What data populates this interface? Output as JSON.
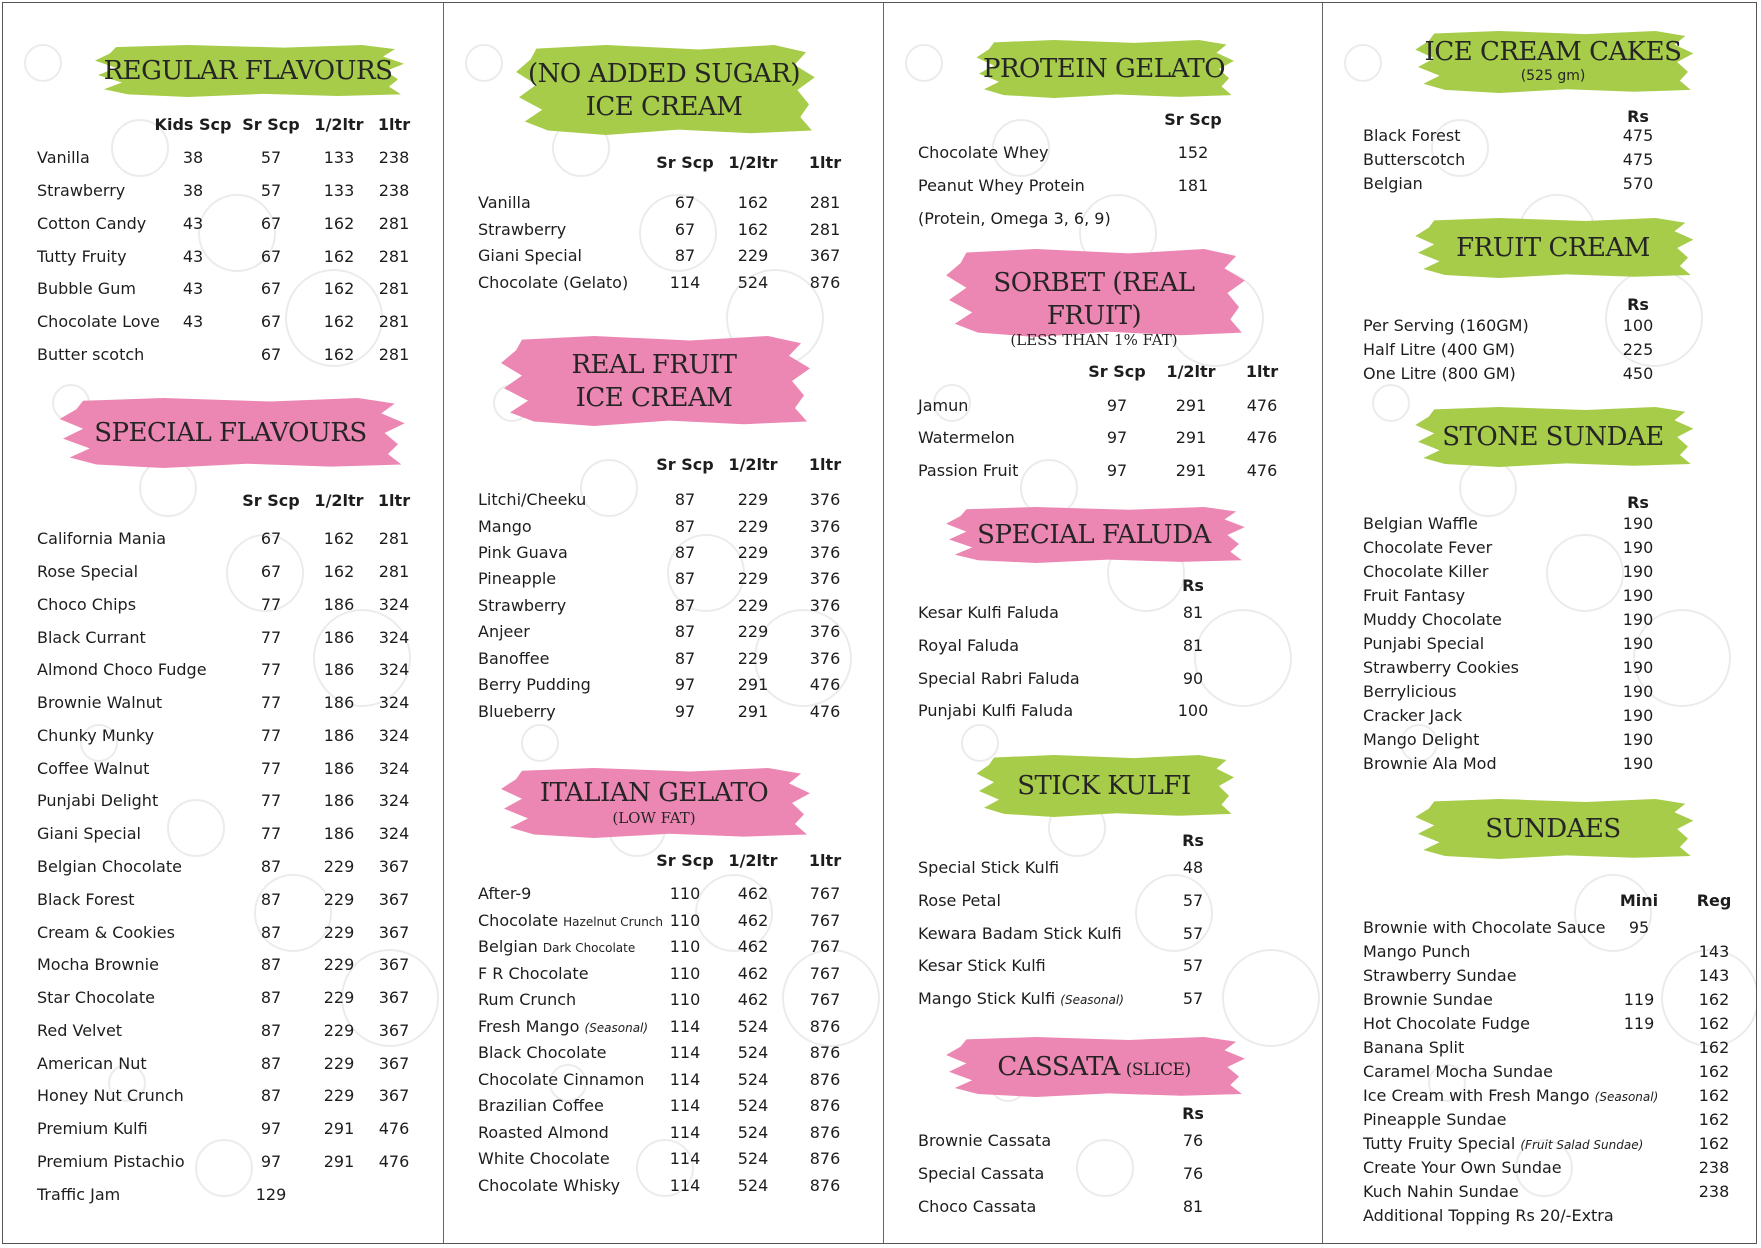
{
  "colors": {
    "green_banner": "#a6cc49",
    "pink_banner": "#ec86b2",
    "border": "#555555"
  },
  "columns": [
    {
      "sections": [
        {
          "title": "REGULAR FLAVOURS",
          "color": "green",
          "headers": [
            "Kids Scp",
            "Sr Scp",
            "1/2ltr",
            "1ltr"
          ],
          "items": [
            {
              "name": "Vanilla",
              "values": [
                "38",
                "57",
                "133",
                "238"
              ]
            },
            {
              "name": "Strawberry",
              "values": [
                "38",
                "57",
                "133",
                "238"
              ]
            },
            {
              "name": "Cotton Candy",
              "values": [
                "43",
                "67",
                "162",
                "281"
              ]
            },
            {
              "name": "Tutty Fruity",
              "values": [
                "43",
                "67",
                "162",
                "281"
              ]
            },
            {
              "name": "Bubble Gum",
              "values": [
                "43",
                "67",
                "162",
                "281"
              ]
            },
            {
              "name": "Chocolate Love",
              "values": [
                "43",
                "67",
                "162",
                "281"
              ]
            },
            {
              "name": "Butter scotch",
              "values": [
                "",
                "67",
                "162",
                "281"
              ]
            }
          ]
        },
        {
          "title": "SPECIAL FLAVOURS",
          "color": "pink",
          "headers": [
            "Sr Scp",
            "1/2ltr",
            "1ltr"
          ],
          "items": [
            {
              "name": "California Mania",
              "values": [
                "67",
                "162",
                "281"
              ]
            },
            {
              "name": "Rose Special",
              "values": [
                "67",
                "162",
                "281"
              ]
            },
            {
              "name": "Choco Chips",
              "values": [
                "77",
                "186",
                "324"
              ]
            },
            {
              "name": "Black Currant",
              "values": [
                "77",
                "186",
                "324"
              ]
            },
            {
              "name": "Almond Choco Fudge",
              "values": [
                "77",
                "186",
                "324"
              ]
            },
            {
              "name": "Brownie Walnut",
              "values": [
                "77",
                "186",
                "324"
              ]
            },
            {
              "name": "Chunky Munky",
              "values": [
                "77",
                "186",
                "324"
              ]
            },
            {
              "name": "Coffee Walnut",
              "values": [
                "77",
                "186",
                "324"
              ]
            },
            {
              "name": "Punjabi Delight",
              "values": [
                "77",
                "186",
                "324"
              ]
            },
            {
              "name": "Giani Special",
              "values": [
                "77",
                "186",
                "324"
              ]
            },
            {
              "name": "Belgian Chocolate",
              "values": [
                "87",
                "229",
                "367"
              ]
            },
            {
              "name": "Black Forest",
              "values": [
                "87",
                "229",
                "367"
              ]
            },
            {
              "name": "Cream & Cookies",
              "values": [
                "87",
                "229",
                "367"
              ]
            },
            {
              "name": "Mocha Brownie",
              "values": [
                "87",
                "229",
                "367"
              ]
            },
            {
              "name": "Star Chocolate",
              "values": [
                "87",
                "229",
                "367"
              ]
            },
            {
              "name": "Red Velvet",
              "values": [
                "87",
                "229",
                "367"
              ]
            },
            {
              "name": "American Nut",
              "values": [
                "87",
                "229",
                "367"
              ]
            },
            {
              "name": "Honey Nut Crunch",
              "values": [
                "87",
                "229",
                "367"
              ]
            },
            {
              "name": "Premium Kulfi",
              "values": [
                "97",
                "291",
                "476"
              ]
            },
            {
              "name": "Premium Pistachio",
              "values": [
                "97",
                "291",
                "476"
              ]
            },
            {
              "name": "Traffic Jam",
              "values": [
                "129",
                "",
                ""
              ]
            }
          ]
        }
      ]
    },
    {
      "sections": [
        {
          "title": "(NO ADDED SUGAR)",
          "title2": "ICE CREAM",
          "color": "green",
          "headers": [
            "Sr Scp",
            "1/2ltr",
            "1ltr"
          ],
          "items": [
            {
              "name": "Vanilla",
              "values": [
                "67",
                "162",
                "281"
              ]
            },
            {
              "name": "Strawberry",
              "values": [
                "67",
                "162",
                "281"
              ]
            },
            {
              "name": "Giani Special",
              "values": [
                "87",
                "229",
                "367"
              ]
            },
            {
              "name": "Chocolate (Gelato)",
              "values": [
                "114",
                "524",
                "876"
              ]
            }
          ]
        },
        {
          "title": "REAL FRUIT",
          "title2": "ICE CREAM",
          "color": "pink",
          "headers": [
            "Sr Scp",
            "1/2ltr",
            "1ltr"
          ],
          "items": [
            {
              "name": "Litchi/Cheeku",
              "values": [
                "87",
                "229",
                "376"
              ]
            },
            {
              "name": "Mango",
              "values": [
                "87",
                "229",
                "376"
              ]
            },
            {
              "name": "Pink Guava",
              "values": [
                "87",
                "229",
                "376"
              ]
            },
            {
              "name": "Pineapple",
              "values": [
                "87",
                "229",
                "376"
              ]
            },
            {
              "name": "Strawberry",
              "values": [
                "87",
                "229",
                "376"
              ]
            },
            {
              "name": "Anjeer",
              "values": [
                "87",
                "229",
                "376"
              ]
            },
            {
              "name": "Banoffee",
              "values": [
                "87",
                "229",
                "376"
              ]
            },
            {
              "name": "Berry Pudding",
              "values": [
                "97",
                "291",
                "476"
              ]
            },
            {
              "name": "Blueberry",
              "values": [
                "97",
                "291",
                "476"
              ]
            }
          ]
        },
        {
          "title": "ITALIAN GELATO",
          "subtitle": "(LOW FAT)",
          "color": "pink",
          "headers": [
            "Sr Scp",
            "1/2ltr",
            "1ltr"
          ],
          "items": [
            {
              "name": "After-9",
              "values": [
                "110",
                "462",
                "767"
              ]
            },
            {
              "name": "Chocolate",
              "small": "Hazelnut Crunch",
              "values": [
                "110",
                "462",
                "767"
              ]
            },
            {
              "name": "Belgian",
              "small": "Dark Chocolate",
              "values": [
                "110",
                "462",
                "767"
              ]
            },
            {
              "name": "F R Chocolate",
              "values": [
                "110",
                "462",
                "767"
              ]
            },
            {
              "name": "Rum Crunch",
              "values": [
                "110",
                "462",
                "767"
              ]
            },
            {
              "name": "Fresh Mango",
              "note": "(Seasonal)",
              "values": [
                "114",
                "524",
                "876"
              ]
            },
            {
              "name": "Black Chocolate",
              "values": [
                "114",
                "524",
                "876"
              ]
            },
            {
              "name": "Chocolate Cinnamon",
              "values": [
                "114",
                "524",
                "876"
              ]
            },
            {
              "name": "Brazilian Coffee",
              "values": [
                "114",
                "524",
                "876"
              ]
            },
            {
              "name": "Roasted Almond",
              "values": [
                "114",
                "524",
                "876"
              ]
            },
            {
              "name": "White Chocolate",
              "values": [
                "114",
                "524",
                "876"
              ]
            },
            {
              "name": "Chocolate Whisky",
              "values": [
                "114",
                "524",
                "876"
              ]
            }
          ]
        }
      ]
    },
    {
      "sections": [
        {
          "title": "PROTEIN GELATO",
          "color": "green",
          "headers": [
            "Sr Scp"
          ],
          "items": [
            {
              "name": "Chocolate Whey",
              "values": [
                "152"
              ]
            },
            {
              "name": "Peanut Whey Protein",
              "values": [
                "181"
              ]
            }
          ],
          "footnote": "(Protein, Omega 3, 6, 9)"
        },
        {
          "title": "SORBET (REAL FRUIT)",
          "subtitle": "(LESS THAN 1% FAT)",
          "color": "pink",
          "headers": [
            "Sr Scp",
            "1/2ltr",
            "1ltr"
          ],
          "items": [
            {
              "name": "Jamun",
              "values": [
                "97",
                "291",
                "476"
              ]
            },
            {
              "name": "Watermelon",
              "values": [
                "97",
                "291",
                "476"
              ]
            },
            {
              "name": "Passion Fruit",
              "values": [
                "97",
                "291",
                "476"
              ]
            }
          ]
        },
        {
          "title": "SPECIAL FALUDA",
          "color": "pink",
          "headers": [
            "Rs"
          ],
          "items": [
            {
              "name": "Kesar Kulfi Faluda",
              "values": [
                "81"
              ]
            },
            {
              "name": "Royal Faluda",
              "values": [
                "81"
              ]
            },
            {
              "name": "Special Rabri Faluda",
              "values": [
                "90"
              ]
            },
            {
              "name": "Punjabi Kulfi Faluda",
              "values": [
                "100"
              ]
            }
          ]
        },
        {
          "title": "STICK KULFI",
          "color": "green",
          "headers": [
            "Rs"
          ],
          "items": [
            {
              "name": "Special Stick Kulfi",
              "values": [
                "48"
              ]
            },
            {
              "name": "Rose Petal",
              "values": [
                "57"
              ]
            },
            {
              "name": "Kewara Badam Stick Kulfi",
              "values": [
                "57"
              ]
            },
            {
              "name": "Kesar Stick Kulfi",
              "values": [
                "57"
              ]
            },
            {
              "name": "Mango Stick Kulfi",
              "note": "(Seasonal)",
              "values": [
                "57"
              ]
            }
          ]
        },
        {
          "title": "CASSATA",
          "subtitle_inline": "(SLICE)",
          "color": "pink",
          "headers": [
            "Rs"
          ],
          "items": [
            {
              "name": "Brownie Cassata",
              "values": [
                "76"
              ]
            },
            {
              "name": "Special Cassata",
              "values": [
                "76"
              ]
            },
            {
              "name": "Choco Cassata",
              "values": [
                "81"
              ]
            }
          ]
        }
      ]
    },
    {
      "sections": [
        {
          "title": "ICE CREAM CAKES",
          "subtitle": "(525 gm)",
          "color": "green",
          "headers": [
            "Rs"
          ],
          "items": [
            {
              "name": "Black Forest",
              "values": [
                "475"
              ]
            },
            {
              "name": "Butterscotch",
              "values": [
                "475"
              ]
            },
            {
              "name": "Belgian",
              "values": [
                "570"
              ]
            }
          ]
        },
        {
          "title": "FRUIT CREAM",
          "color": "green",
          "headers": [
            "Rs"
          ],
          "items": [
            {
              "name": "Per Serving (160GM)",
              "values": [
                "100"
              ]
            },
            {
              "name": "Half Litre (400 GM)",
              "values": [
                "225"
              ]
            },
            {
              "name": "One Litre (800 GM)",
              "values": [
                "450"
              ]
            }
          ]
        },
        {
          "title": "STONE SUNDAE",
          "color": "green",
          "headers": [
            "Rs"
          ],
          "items": [
            {
              "name": "Belgian Waffle",
              "values": [
                "190"
              ]
            },
            {
              "name": "Chocolate Fever",
              "values": [
                "190"
              ]
            },
            {
              "name": "Chocolate Killer",
              "values": [
                "190"
              ]
            },
            {
              "name": "Fruit Fantasy",
              "values": [
                "190"
              ]
            },
            {
              "name": "Muddy Chocolate",
              "values": [
                "190"
              ]
            },
            {
              "name": "Punjabi Special",
              "values": [
                "190"
              ]
            },
            {
              "name": "Strawberry Cookies",
              "values": [
                "190"
              ]
            },
            {
              "name": "Berrylicious",
              "values": [
                "190"
              ]
            },
            {
              "name": "Cracker Jack",
              "values": [
                "190"
              ]
            },
            {
              "name": "Mango Delight",
              "values": [
                "190"
              ]
            },
            {
              "name": "Brownie Ala Mod",
              "values": [
                "190"
              ]
            }
          ]
        },
        {
          "title": "SUNDAES",
          "color": "green",
          "headers": [
            "Mini",
            "Reg"
          ],
          "items": [
            {
              "name": "Brownie with Chocolate Sauce",
              "values": [
                "95",
                ""
              ]
            },
            {
              "name": "Mango Punch",
              "values": [
                "",
                "143"
              ]
            },
            {
              "name": "Strawberry Sundae",
              "values": [
                "",
                "143"
              ]
            },
            {
              "name": "Brownie Sundae",
              "values": [
                "119",
                "162"
              ]
            },
            {
              "name": "Hot Chocolate Fudge",
              "values": [
                "119",
                "162"
              ]
            },
            {
              "name": "Banana Split",
              "values": [
                "",
                "162"
              ]
            },
            {
              "name": "Caramel Mocha Sundae",
              "values": [
                "",
                "162"
              ]
            },
            {
              "name": "Ice Cream with Fresh Mango",
              "note": "(Seasonal)",
              "values": [
                "",
                "162"
              ]
            },
            {
              "name": "Pineapple Sundae",
              "values": [
                "",
                "162"
              ]
            },
            {
              "name": "Tutty Fruity  Special",
              "note": "(Fruit Salad Sundae)",
              "values": [
                "",
                "162"
              ]
            },
            {
              "name": "Create Your Own Sundae",
              "values": [
                "",
                "238"
              ]
            },
            {
              "name": "Kuch Nahin Sundae",
              "values": [
                "",
                "238"
              ]
            }
          ],
          "footnote": "Additional Topping Rs 20/-Extra"
        }
      ]
    }
  ]
}
